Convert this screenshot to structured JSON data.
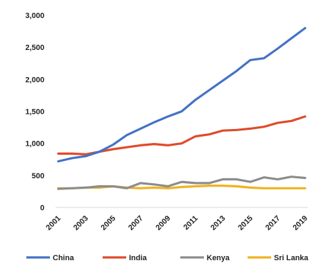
{
  "chart_data": {
    "type": "line",
    "title": "",
    "xlabel": "",
    "ylabel": "",
    "x": [
      2001,
      2002,
      2003,
      2004,
      2005,
      2006,
      2007,
      2008,
      2009,
      2010,
      2011,
      2012,
      2013,
      2014,
      2015,
      2016,
      2017,
      2018,
      2019
    ],
    "x_tick_labels": [
      "2001",
      "2003",
      "2005",
      "2007",
      "2009",
      "2011",
      "2013",
      "2015",
      "2017",
      "2019"
    ],
    "y_tick_labels": [
      "0",
      "500",
      "1,000",
      "1,500",
      "2,000",
      "2,500",
      "3,000"
    ],
    "ylim": [
      0,
      3000
    ],
    "grid": false,
    "legend_position": "bottom",
    "series": [
      {
        "name": "China",
        "color": "#4472C4",
        "values": [
          720,
          770,
          800,
          870,
          980,
          1130,
          1230,
          1330,
          1420,
          1500,
          1680,
          1830,
          1980,
          2130,
          2300,
          2330,
          2480,
          2640,
          2800
        ]
      },
      {
        "name": "India",
        "color": "#E04A2A",
        "values": [
          840,
          840,
          830,
          870,
          910,
          940,
          970,
          990,
          970,
          1000,
          1110,
          1140,
          1200,
          1210,
          1230,
          1260,
          1320,
          1350,
          1420
        ]
      },
      {
        "name": "Kenya",
        "color": "#8C8C8C",
        "values": [
          290,
          300,
          310,
          330,
          330,
          300,
          380,
          360,
          330,
          400,
          380,
          380,
          440,
          440,
          400,
          470,
          440,
          480,
          460
        ]
      },
      {
        "name": "Sri Lanka",
        "color": "#F0B21E",
        "values": [
          300,
          300,
          310,
          310,
          330,
          310,
          300,
          310,
          300,
          320,
          330,
          340,
          340,
          330,
          310,
          300,
          300,
          300,
          300
        ]
      }
    ]
  }
}
